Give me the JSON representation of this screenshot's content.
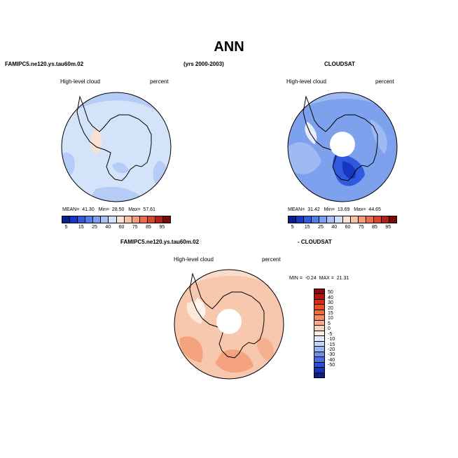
{
  "title": "ANN",
  "header": {
    "model": "FAMIPC5.ne120.ys.tau60m.02",
    "years": "(yrs 2000-2003)",
    "obs": "CLOUDSAT",
    "diff_model": "FAMIPC5.ne120.ys.tau60m.02",
    "diff_obs": "- CLOUDSAT"
  },
  "panels": [
    {
      "name": "model",
      "variable": "High-level cloud",
      "units": "percent",
      "mean_label": "MEAN=",
      "mean": "41.30",
      "min_label": "Min=",
      "min": "28.50",
      "max_label": "Max=",
      "max": "57.61"
    },
    {
      "name": "cloudsat",
      "variable": "High-level cloud",
      "units": "percent",
      "mean_label": "MEAN=",
      "mean": "31.42",
      "min_label": "Min=",
      "min": "13.69",
      "max_label": "Max=",
      "max": "44.65"
    },
    {
      "name": "difference",
      "variable": "High-level cloud",
      "units": "percent",
      "min_label": "MIN =",
      "min": "-0.24",
      "max_label": "MAX =",
      "max": "21.31"
    }
  ],
  "colorbar": {
    "ticks": [
      "5",
      "15",
      "25",
      "40",
      "60",
      "75",
      "85",
      "95"
    ],
    "colors": [
      "#0a1f8f",
      "#1637c4",
      "#2f5ae0",
      "#4f7de8",
      "#7a9ff0",
      "#a8c0f5",
      "#d1dff9",
      "#fbe3d3",
      "#f8c2a4",
      "#f49a74",
      "#ec6e49",
      "#d8452a",
      "#b02015",
      "#7a0a0a"
    ]
  },
  "diff_colorbar": {
    "ticks": [
      "50",
      "40",
      "30",
      "20",
      "15",
      "10",
      "5",
      "0",
      "-5",
      "-10",
      "-15",
      "-20",
      "-30",
      "-40",
      "-50"
    ],
    "colors": [
      "#8b0a0a",
      "#b4180e",
      "#d62c12",
      "#ec4b1f",
      "#f4693a",
      "#f68b61",
      "#f8ae8c",
      "#fbd4bd",
      "#fdeee4",
      "#e4edfb",
      "#c2d3f6",
      "#97b3ee",
      "#6f90e6",
      "#4a6ee0",
      "#2a4ed6",
      "#1a32b6",
      "#0f1f8c"
    ]
  },
  "map": {
    "projection": "south polar stereographic",
    "region": "Antarctica",
    "colors": {
      "model_fill": "#d3e3fa",
      "cloudsat_fill": "#7ea1ed",
      "diff_fill": "#f8c8ae",
      "coast": "#000000",
      "hole": "#ffffff"
    }
  }
}
